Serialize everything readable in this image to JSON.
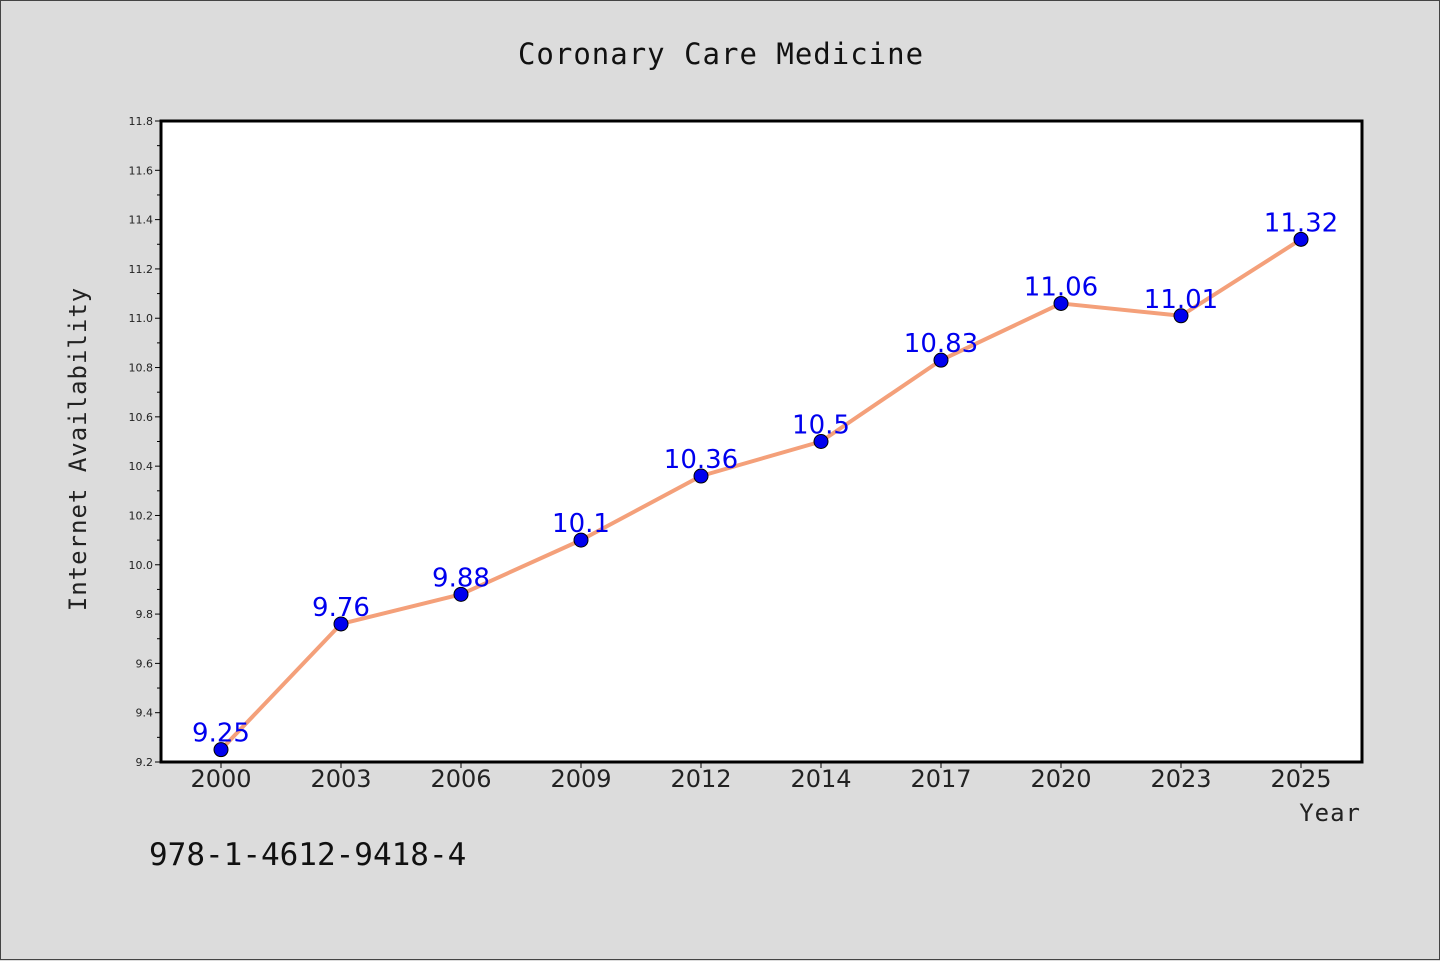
{
  "chart_data": {
    "type": "line",
    "title": "Coronary Care Medicine",
    "xlabel": "Year",
    "ylabel": "Internet Availability",
    "categories": [
      "2000",
      "2003",
      "2006",
      "2009",
      "2012",
      "2014",
      "2017",
      "2020",
      "2023",
      "2025"
    ],
    "series": [
      {
        "values": [
          9.25,
          9.76,
          9.88,
          10.1,
          10.36,
          10.5,
          10.83,
          11.06,
          11.01,
          11.32
        ],
        "labels": [
          "9.25",
          "9.76",
          "9.88",
          "10.1",
          "10.36",
          "10.5",
          "10.83",
          "11.06",
          "11.01",
          "11.32"
        ],
        "line_color": "#f4a07a",
        "marker_color": "#0000ee"
      }
    ],
    "ylim": [
      9.2,
      11.8
    ],
    "yticks": [
      "9.2",
      "9.4",
      "9.6",
      "9.8",
      "10.0",
      "10.2",
      "10.4",
      "10.6",
      "10.8",
      "11.0",
      "11.2",
      "11.4",
      "11.6",
      "11.8"
    ],
    "grid": false,
    "data_labels": true
  },
  "footer": {
    "isbn": "978-1-4612-9418-4"
  },
  "colors": {
    "background": "#dcdcdc",
    "plot_background": "#ffffff",
    "axis": "#000000"
  }
}
